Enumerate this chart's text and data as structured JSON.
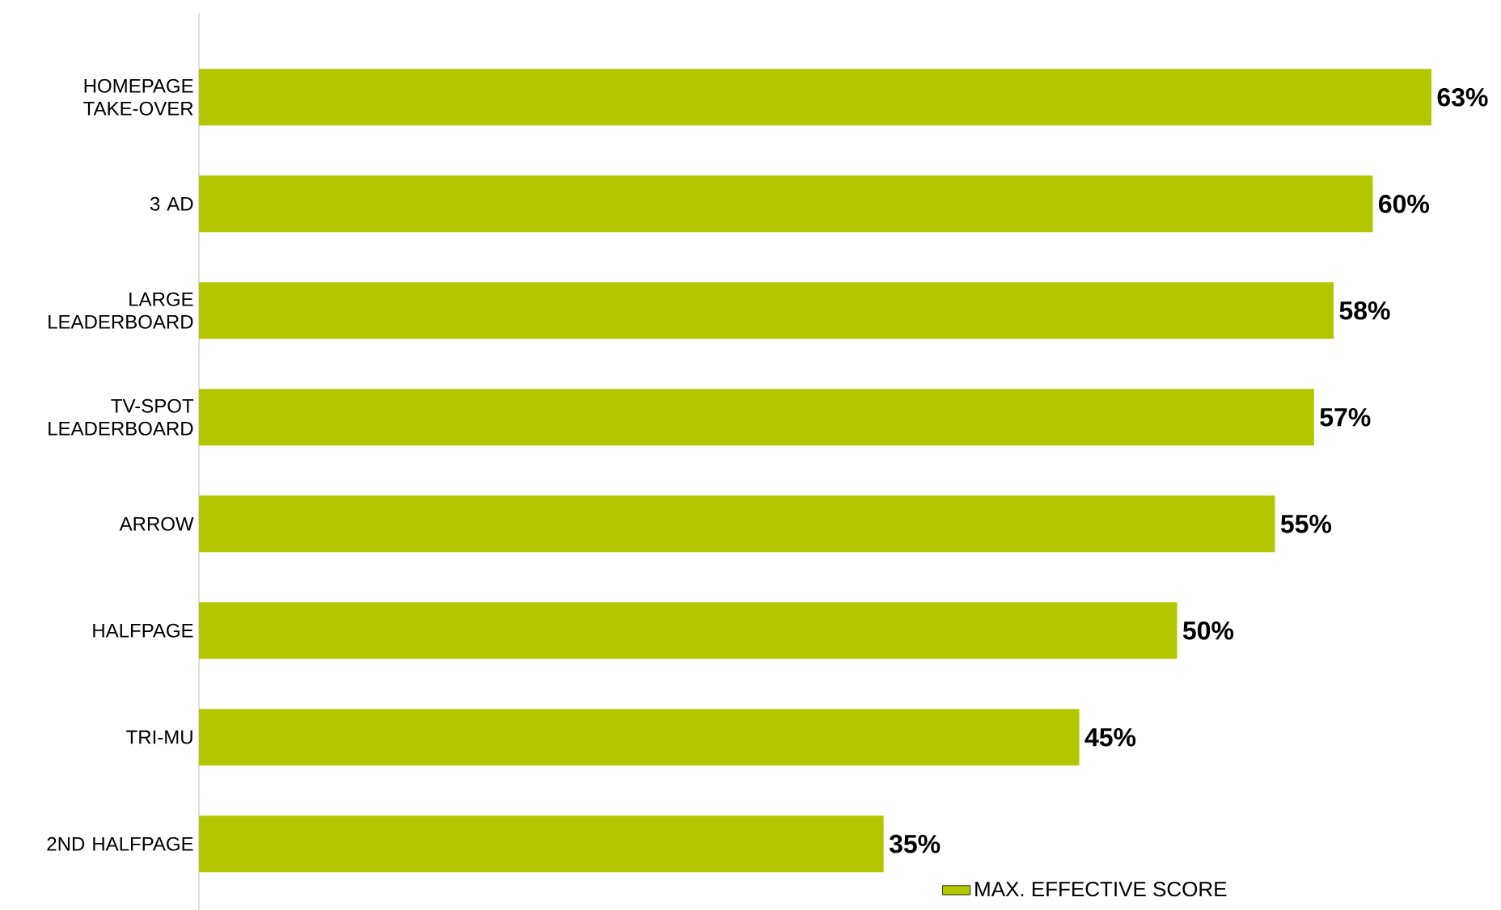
{
  "chart_data": {
    "type": "bar",
    "orientation": "horizontal",
    "categories": [
      "HOMEPAGE TAKE-OVER",
      "3 AD",
      "LARGE LEADERBOARD",
      "TV-SPOT LEADERBOARD",
      "ARROW",
      "HALFPAGE",
      "TRI-MU",
      "2ND HALFPAGE"
    ],
    "series": [
      {
        "name": "MAX. EFFECTIVE SCORE",
        "color": "#b3c701",
        "values": [
          63,
          60,
          58,
          57,
          55,
          50,
          45,
          35
        ],
        "value_labels": [
          "63%",
          "60%",
          "58%",
          "57%",
          "55%",
          "50%",
          "45%",
          "35%"
        ]
      }
    ],
    "legend": "bottom right"
  }
}
